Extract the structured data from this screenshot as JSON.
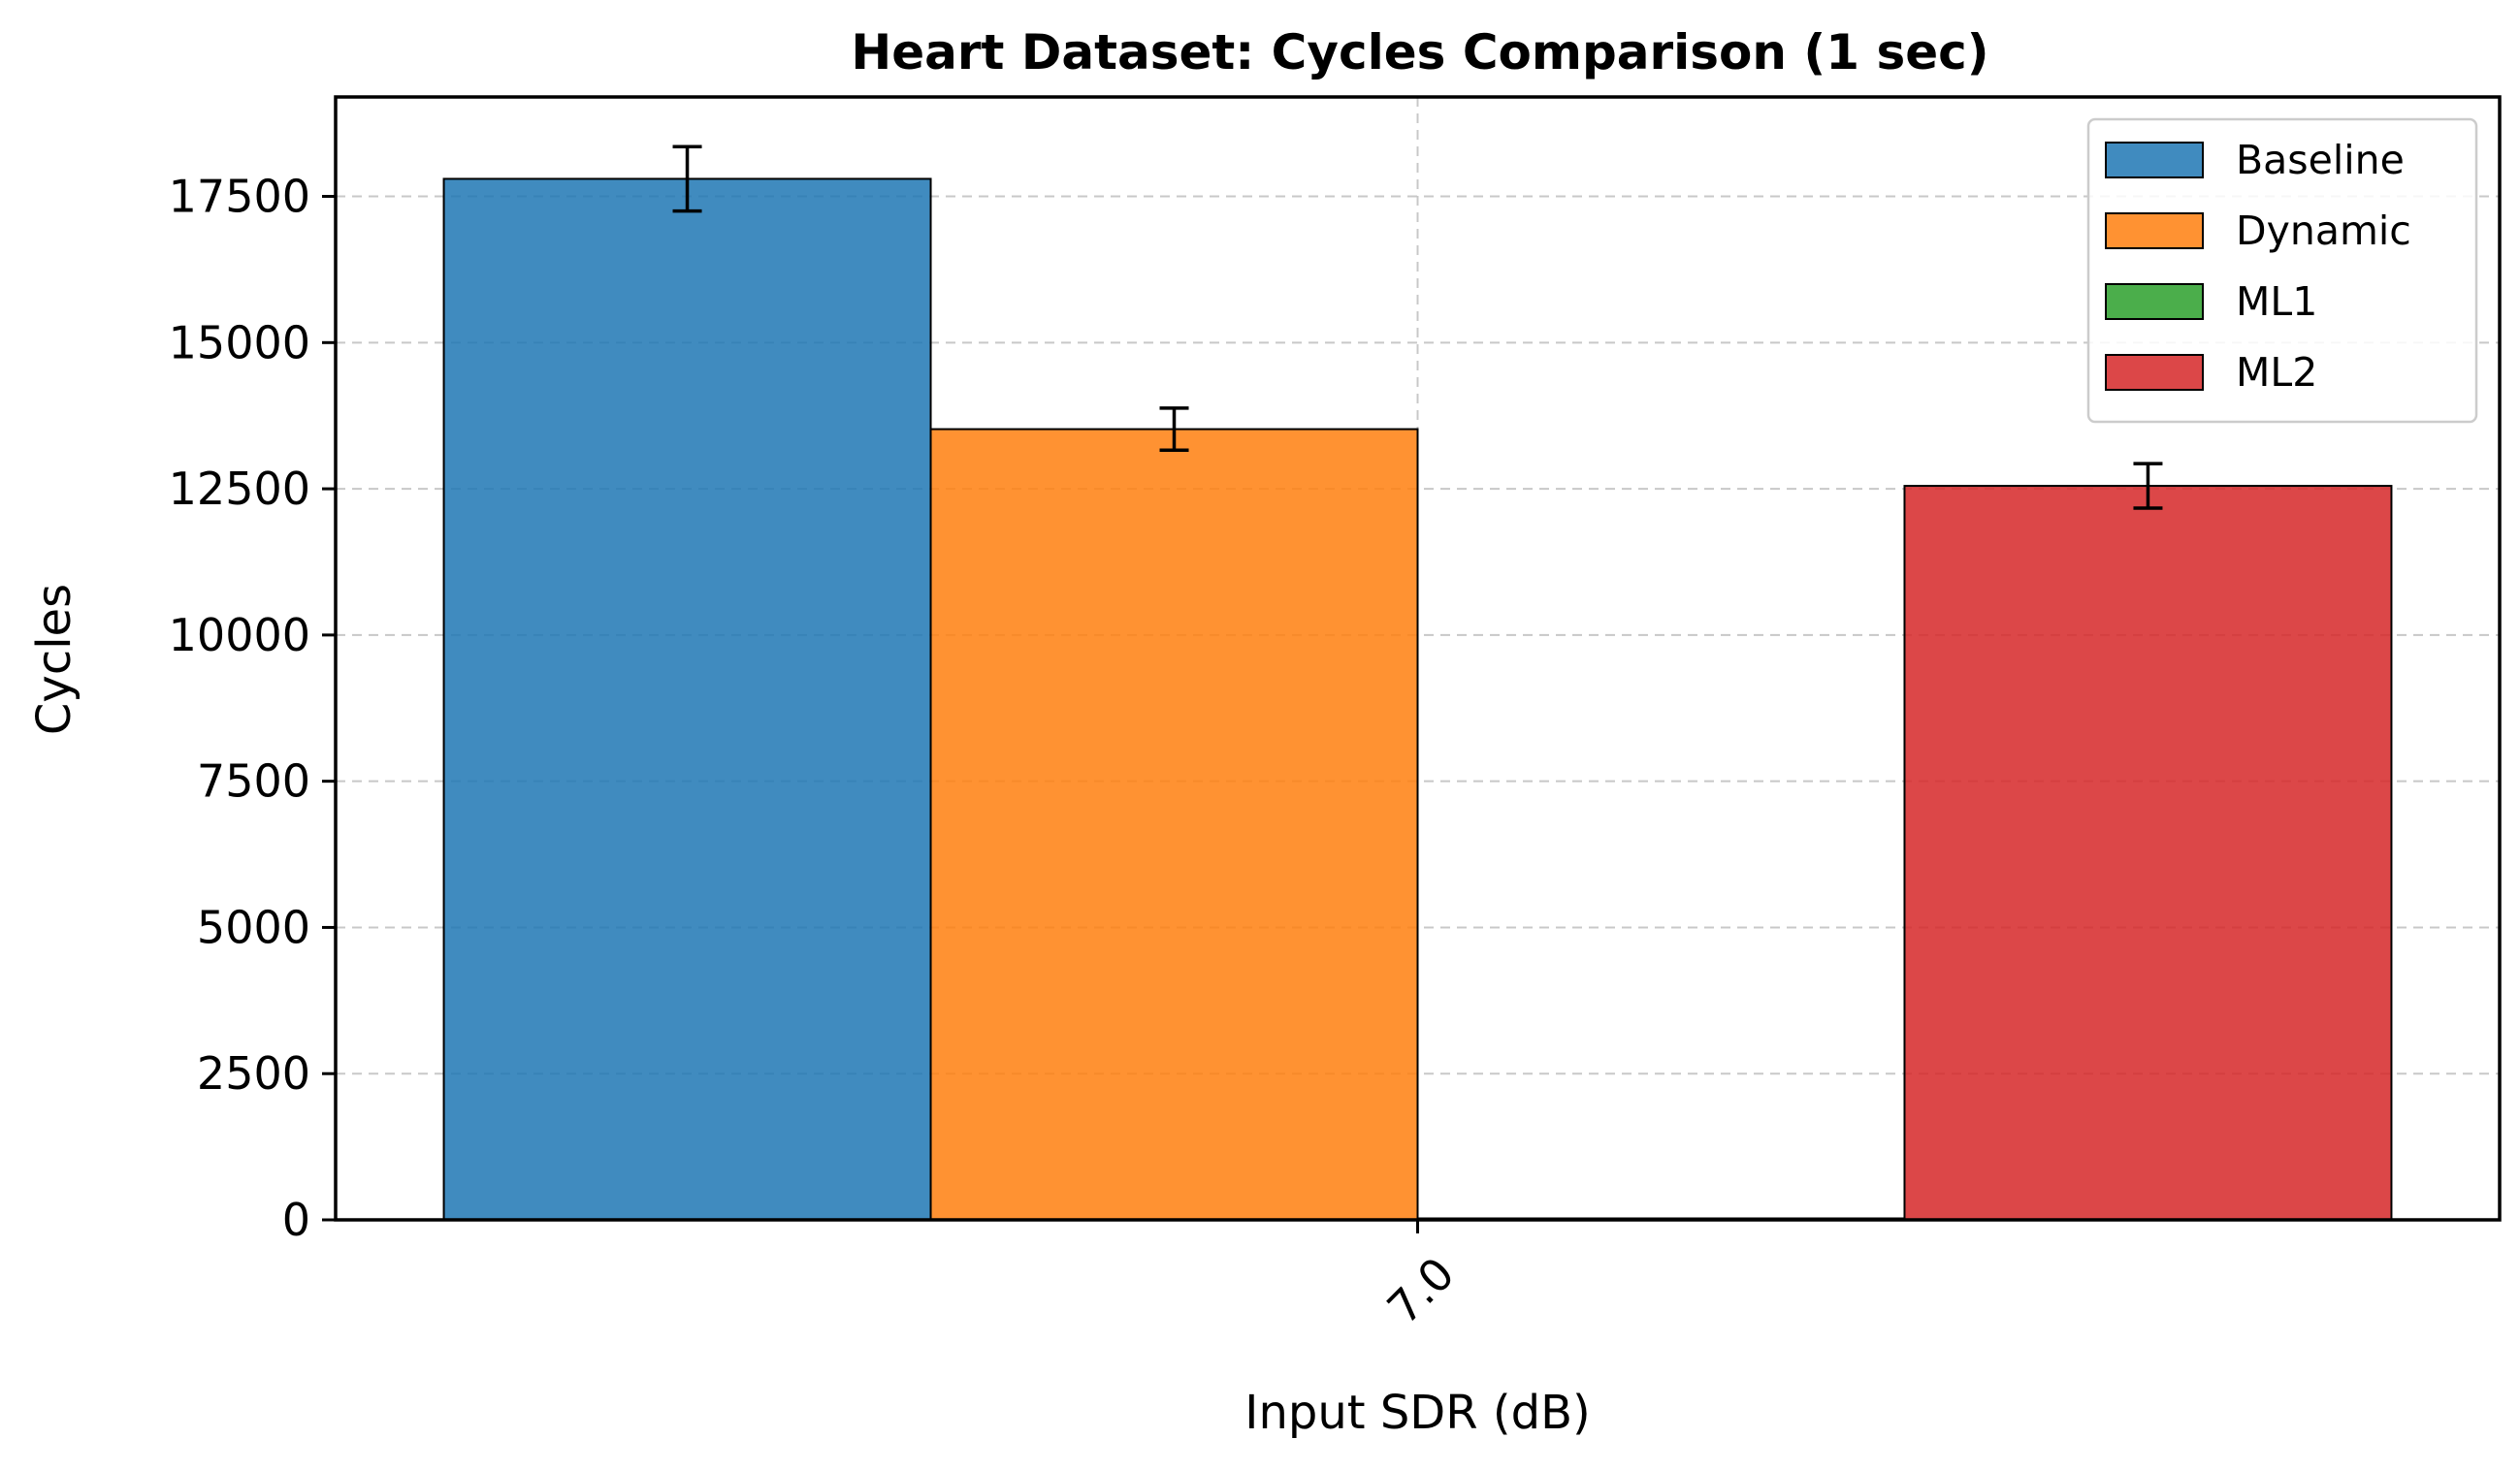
{
  "chart_data": {
    "type": "bar",
    "title": "Heart Dataset: Cycles Comparison (1 sec)",
    "xlabel": "Input SDR (dB)",
    "ylabel": "Cycles",
    "categories": [
      "7.0"
    ],
    "ylim": [
      0,
      19200
    ],
    "yticks": [
      0,
      2500,
      5000,
      7500,
      10000,
      12500,
      15000,
      17500
    ],
    "grid": true,
    "legend_position": "top-right",
    "series": [
      {
        "name": "Baseline",
        "values": [
          17800
        ],
        "error": [
          550
        ],
        "color": "#1f77b4"
      },
      {
        "name": "Dynamic",
        "values": [
          13520
        ],
        "error": [
          360
        ],
        "color": "#ff7f0e"
      },
      {
        "name": "ML1",
        "values": [
          0
        ],
        "error": [
          0
        ],
        "color": "#2ca02c"
      },
      {
        "name": "ML2",
        "values": [
          12550
        ],
        "error": [
          380
        ],
        "color": "#d62728"
      }
    ]
  }
}
